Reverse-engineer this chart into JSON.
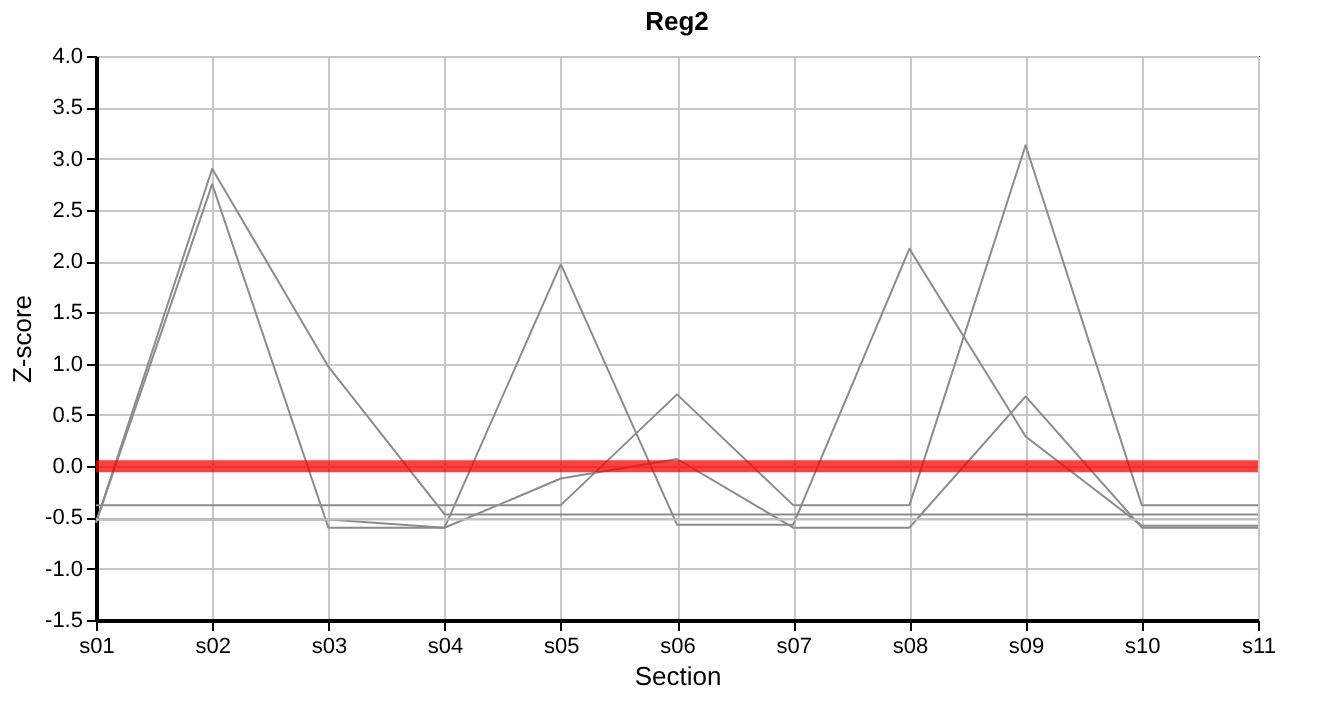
{
  "chart_data": {
    "type": "line",
    "title": "Reg2",
    "xlabel": "Section",
    "ylabel": "Z-score",
    "categories": [
      "s01",
      "s02",
      "s03",
      "s04",
      "s05",
      "s06",
      "s07",
      "s08",
      "s09",
      "s10",
      "s11"
    ],
    "series": [
      {
        "color": "#8c8c8c",
        "values": [
          -0.55,
          2.9,
          0.97,
          -0.47,
          -0.47,
          -0.47,
          -0.47,
          -0.47,
          -0.47,
          -0.47,
          -0.47
        ]
      },
      {
        "color": "#8c8c8c",
        "values": [
          -0.55,
          2.75,
          -0.6,
          -0.6,
          1.97,
          -0.57,
          -0.57,
          2.12,
          0.29,
          -0.58,
          -0.58
        ]
      },
      {
        "color": "#8c8c8c",
        "values": [
          -0.38,
          -0.38,
          -0.38,
          -0.38,
          -0.38,
          0.7,
          -0.38,
          -0.38,
          3.13,
          -0.38,
          -0.38
        ]
      },
      {
        "color": "#8c8c8c",
        "values": [
          -0.52,
          -0.52,
          -0.52,
          -0.6,
          -0.12,
          0.07,
          -0.6,
          -0.6,
          0.68,
          -0.6,
          -0.6
        ]
      },
      {
        "color": "#c0c0c0",
        "values": [
          -0.52,
          -0.52,
          -0.52,
          -0.52,
          -0.52,
          -0.52,
          -0.52,
          -0.52,
          -0.52,
          -0.52,
          -0.52
        ]
      }
    ],
    "ref_lines": [
      {
        "axis": "y",
        "value": 0,
        "color": "#ff0000"
      }
    ],
    "ylim": [
      -1.5,
      4.0
    ],
    "yticks": [
      {
        "value": -1.5,
        "label": "-1.5"
      },
      {
        "value": -1.0,
        "label": "-1.0"
      },
      {
        "value": -0.5,
        "label": "-0.5"
      },
      {
        "value": 0,
        "label": "0.0"
      },
      {
        "value": 0.5,
        "label": "0.5"
      },
      {
        "value": 1.0,
        "label": "1.0"
      },
      {
        "value": 1.5,
        "label": "1.5"
      },
      {
        "value": 2.0,
        "label": "2.0"
      },
      {
        "value": 2.5,
        "label": "2.5"
      },
      {
        "value": 3.0,
        "label": "3.0"
      },
      {
        "value": 3.5,
        "label": "3.5"
      },
      {
        "value": 4.0,
        "label": "4.0"
      }
    ],
    "grid": true,
    "marker": "none",
    "line_style": "solid"
  }
}
